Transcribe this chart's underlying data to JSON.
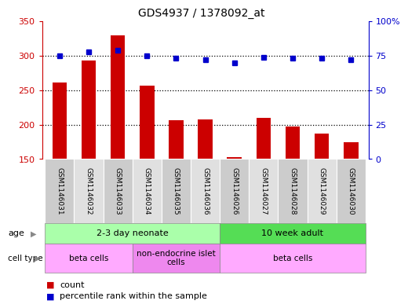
{
  "title": "GDS4937 / 1378092_at",
  "samples": [
    "GSM1146031",
    "GSM1146032",
    "GSM1146033",
    "GSM1146034",
    "GSM1146035",
    "GSM1146036",
    "GSM1146026",
    "GSM1146027",
    "GSM1146028",
    "GSM1146029",
    "GSM1146030"
  ],
  "counts": [
    261,
    293,
    330,
    257,
    206,
    207,
    153,
    210,
    197,
    187,
    175
  ],
  "percentiles": [
    75,
    78,
    79,
    75,
    73,
    72,
    70,
    74,
    73,
    73,
    72
  ],
  "bar_color": "#cc0000",
  "dot_color": "#0000cc",
  "ylim_left": [
    150,
    350
  ],
  "ylim_right": [
    0,
    100
  ],
  "yticks_left": [
    150,
    200,
    250,
    300,
    350
  ],
  "yticks_right": [
    0,
    25,
    50,
    75,
    100
  ],
  "ytick_right_labels": [
    "0",
    "25",
    "50",
    "75",
    "100%"
  ],
  "grid_values": [
    200,
    250,
    300
  ],
  "age_groups": [
    {
      "label": "2-3 day neonate",
      "start": 0,
      "end": 6,
      "color": "#aaffaa"
    },
    {
      "label": "10 week adult",
      "start": 6,
      "end": 11,
      "color": "#55dd55"
    }
  ],
  "cell_type_groups": [
    {
      "label": "beta cells",
      "start": 0,
      "end": 3,
      "color": "#ffaaff"
    },
    {
      "label": "non-endocrine islet\ncells",
      "start": 3,
      "end": 6,
      "color": "#ee88ee"
    },
    {
      "label": "beta cells",
      "start": 6,
      "end": 11,
      "color": "#ffaaff"
    }
  ],
  "legend_count_label": "count",
  "legend_percentile_label": "percentile rank within the sample",
  "age_label": "age",
  "cell_type_label": "cell type",
  "background_color": "#ffffff",
  "plot_bg": "#ffffff",
  "bar_width": 0.5,
  "box_colors": [
    "#cccccc",
    "#e0e0e0"
  ]
}
